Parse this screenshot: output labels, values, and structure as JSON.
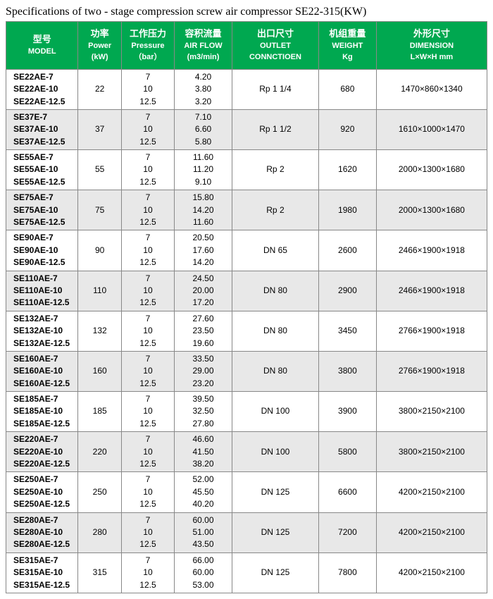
{
  "title": "Specifications of two - stage compression screw air compressor SE22-315(KW)",
  "headers": {
    "model": {
      "cn": "型号",
      "en": "MODEL"
    },
    "power": {
      "cn": "功率",
      "en": "Power",
      "unit": "(kW)"
    },
    "pressure": {
      "cn": "工作压力",
      "en": "Pressure",
      "unit": "（bar）"
    },
    "airflow": {
      "cn": "容积流量",
      "en": "AIR FLOW",
      "unit": "(m3/min)"
    },
    "outlet": {
      "cn": "出口尺寸",
      "en": "OUTLET CONNCTIOEN"
    },
    "weight": {
      "cn": "机组重量",
      "en": "WEIGHT",
      "unit": "Kg"
    },
    "dim": {
      "cn": "外形尺寸",
      "en": "DIMENSION",
      "unit": "L×W×H mm"
    }
  },
  "groups": [
    {
      "models": [
        "SE22AE-7",
        "SE22AE-10",
        "SE22AE-12.5"
      ],
      "power": "22",
      "pressures": [
        "7",
        "10",
        "12.5"
      ],
      "flows": [
        "4.20",
        "3.80",
        "3.20"
      ],
      "outlet": "Rp 1 1/4",
      "weight": "680",
      "dim": "1470×860×1340"
    },
    {
      "models": [
        "SE37E-7",
        "SE37AE-10",
        "SE37AE-12.5"
      ],
      "power": "37",
      "pressures": [
        "7",
        "10",
        "12.5"
      ],
      "flows": [
        "7.10",
        "6.60",
        "5.80"
      ],
      "outlet": "Rp 1 1/2",
      "weight": "920",
      "dim": "1610×1000×1470"
    },
    {
      "models": [
        "SE55AE-7",
        "SE55AE-10",
        "SE55AE-12.5"
      ],
      "power": "55",
      "pressures": [
        "7",
        "10",
        "12.5"
      ],
      "flows": [
        "11.60",
        "11.20",
        "9.10"
      ],
      "outlet": "Rp 2",
      "weight": "1620",
      "dim": "2000×1300×1680"
    },
    {
      "models": [
        "SE75AE-7",
        "SE75AE-10",
        "SE75AE-12.5"
      ],
      "power": "75",
      "pressures": [
        "7",
        "10",
        "12.5"
      ],
      "flows": [
        "15.80",
        "14.20",
        "11.60"
      ],
      "outlet": "Rp 2",
      "weight": "1980",
      "dim": "2000×1300×1680"
    },
    {
      "models": [
        "SE90AE-7",
        "SE90AE-10",
        "SE90AE-12.5"
      ],
      "power": "90",
      "pressures": [
        "7",
        "10",
        "12.5"
      ],
      "flows": [
        "20.50",
        "17.60",
        "14.20"
      ],
      "outlet": "DN 65",
      "weight": "2600",
      "dim": "2466×1900×1918"
    },
    {
      "models": [
        "SE110AE-7",
        "SE110AE-10",
        "SE110AE-12.5"
      ],
      "power": "110",
      "pressures": [
        "7",
        "10",
        "12.5"
      ],
      "flows": [
        "24.50",
        "20.00",
        "17.20"
      ],
      "outlet": "DN 80",
      "weight": "2900",
      "dim": "2466×1900×1918"
    },
    {
      "models": [
        "SE132AE-7",
        "SE132AE-10",
        "SE132AE-12.5"
      ],
      "power": "132",
      "pressures": [
        "7",
        "10",
        "12.5"
      ],
      "flows": [
        "27.60",
        "23.50",
        "19.60"
      ],
      "outlet": "DN 80",
      "weight": "3450",
      "dim": "2766×1900×1918"
    },
    {
      "models": [
        "SE160AE-7",
        "SE160AE-10",
        "SE160AE-12.5"
      ],
      "power": "160",
      "pressures": [
        "7",
        "10",
        "12.5"
      ],
      "flows": [
        "33.50",
        "29.00",
        "23.20"
      ],
      "outlet": "DN 80",
      "weight": "3800",
      "dim": "2766×1900×1918"
    },
    {
      "models": [
        "SE185AE-7",
        "SE185AE-10",
        "SE185AE-12.5"
      ],
      "power": "185",
      "pressures": [
        "7",
        "10",
        "12.5"
      ],
      "flows": [
        "39.50",
        "32.50",
        "27.80"
      ],
      "outlet": "DN 100",
      "weight": "3900",
      "dim": "3800×2150×2100"
    },
    {
      "models": [
        "SE220AE-7",
        "SE220AE-10",
        "SE220AE-12.5"
      ],
      "power": "220",
      "pressures": [
        "7",
        "10",
        "12.5"
      ],
      "flows": [
        "46.60",
        "41.50",
        "38.20"
      ],
      "outlet": "DN 100",
      "weight": "5800",
      "dim": "3800×2150×2100"
    },
    {
      "models": [
        "SE250AE-7",
        "SE250AE-10",
        "SE250AE-12.5"
      ],
      "power": "250",
      "pressures": [
        "7",
        "10",
        "12.5"
      ],
      "flows": [
        "52.00",
        "45.50",
        "40.20"
      ],
      "outlet": "DN 125",
      "weight": "6600",
      "dim": "4200×2150×2100"
    },
    {
      "models": [
        "SE280AE-7",
        "SE280AE-10",
        "SE280AE-12.5"
      ],
      "power": "280",
      "pressures": [
        "7",
        "10",
        "12.5"
      ],
      "flows": [
        "60.00",
        "51.00",
        "43.50"
      ],
      "outlet": "DN 125",
      "weight": "7200",
      "dim": "4200×2150×2100"
    },
    {
      "models": [
        "SE315AE-7",
        "SE315AE-10",
        "SE315AE-12.5"
      ],
      "power": "315",
      "pressures": [
        "7",
        "10",
        "12.5"
      ],
      "flows": [
        "66.00",
        "60.00",
        "53.00"
      ],
      "outlet": "DN 125",
      "weight": "7800",
      "dim": "4200×2150×2100"
    }
  ]
}
